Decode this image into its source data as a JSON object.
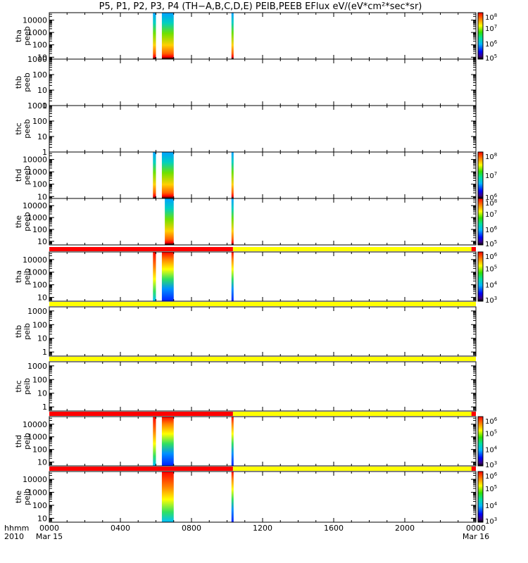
{
  "title": "P5, P1, P2, P3, P4 (TH−A,B,C,D,E) PEIB,PEEB EFlux eV/(eV*cm²*sec*sr)",
  "colors": {
    "red": "#ff0000",
    "yellow": "#ffff00",
    "background": "#ffffff"
  },
  "chart_data": [
    {
      "type": "heatmap",
      "probe": "tha",
      "product": "peeb",
      "ylabel": "tha\npeeb",
      "yscale": "log",
      "ylim": [
        7,
        40000
      ],
      "yticks": [
        "10000",
        "1000",
        "100",
        "10"
      ],
      "colorbar": {
        "min": 100000,
        "max": 100000000,
        "ticks": [
          "10^8",
          "10^7",
          "10^6",
          "10^5"
        ]
      },
      "data_intervals_hhmm": [
        [
          "0550",
          "0600"
        ],
        [
          "0620",
          "0700"
        ],
        [
          "1015",
          "1020"
        ]
      ]
    },
    {
      "type": "heatmap",
      "probe": "thb",
      "product": "peeb",
      "ylabel": "thb\npeeb",
      "yscale": "log",
      "ylim": [
        1,
        1000
      ],
      "yticks": [
        "1000",
        "100",
        "10",
        "1"
      ],
      "colorbar": null,
      "data_intervals_hhmm": []
    },
    {
      "type": "heatmap",
      "probe": "thc",
      "product": "peeb",
      "ylabel": "thc\npeeb",
      "yscale": "log",
      "ylim": [
        1,
        1000
      ],
      "yticks": [
        "1000",
        "100",
        "10",
        "1"
      ],
      "colorbar": null,
      "data_intervals_hhmm": []
    },
    {
      "type": "heatmap",
      "probe": "thd",
      "product": "peeb",
      "ylabel": "thd\npeeb",
      "yscale": "log",
      "ylim": [
        7,
        40000
      ],
      "yticks": [
        "10000",
        "1000",
        "100",
        "10"
      ],
      "colorbar": {
        "min": 1000000,
        "max": 100000000,
        "ticks": [
          "10^8",
          "10^7",
          "10^6"
        ]
      },
      "data_intervals_hhmm": [
        [
          "0550",
          "0600"
        ],
        [
          "0620",
          "0700"
        ],
        [
          "1015",
          "1020"
        ]
      ]
    },
    {
      "type": "heatmap",
      "probe": "the",
      "product": "peeb",
      "ylabel": "the\npeeb",
      "yscale": "log",
      "ylim": [
        5,
        40000
      ],
      "yticks": [
        "10000",
        "1000",
        "100",
        "10"
      ],
      "colorbar": {
        "min": 100000,
        "max": 100000000,
        "ticks": [
          "10^8",
          "10^7",
          "10^6",
          "10^5"
        ]
      },
      "data_intervals_hhmm": [
        [
          "0630",
          "0700"
        ],
        [
          "1015",
          "1020"
        ]
      ]
    },
    {
      "type": "heatmap",
      "probe": "tha",
      "product": "peib",
      "ylabel": "tha\npeib",
      "yscale": "log",
      "ylim": [
        5,
        40000
      ],
      "yticks": [
        "10000",
        "1000",
        "100",
        "10"
      ],
      "colorbar": {
        "min": 1000,
        "max": 1000000,
        "ticks": [
          "10^6",
          "10^5",
          "10^4",
          "10^3"
        ]
      },
      "mode_bar": [
        {
          "from": "0000",
          "to": "1020",
          "color": "red"
        },
        {
          "from": "1020",
          "to": "2345",
          "color": "yellow"
        },
        {
          "from": "2345",
          "to": "2400",
          "color": "red"
        }
      ],
      "data_intervals_hhmm": [
        [
          "0550",
          "0600"
        ],
        [
          "0620",
          "0700"
        ],
        [
          "1015",
          "1020"
        ]
      ]
    },
    {
      "type": "heatmap",
      "probe": "thb",
      "product": "peib",
      "ylabel": "thb\npeib",
      "yscale": "log",
      "ylim": [
        0.5,
        2000
      ],
      "yticks": [
        "1000",
        "100",
        "10",
        "1"
      ],
      "colorbar": null,
      "mode_bar": [
        {
          "from": "0000",
          "to": "2400",
          "color": "yellow"
        }
      ],
      "data_intervals_hhmm": []
    },
    {
      "type": "heatmap",
      "probe": "thc",
      "product": "peib",
      "ylabel": "thc\npeib",
      "yscale": "log",
      "ylim": [
        0.5,
        2000
      ],
      "yticks": [
        "1000",
        "100",
        "10",
        "1"
      ],
      "colorbar": null,
      "mode_bar": [
        {
          "from": "0000",
          "to": "2400",
          "color": "yellow"
        }
      ],
      "data_intervals_hhmm": []
    },
    {
      "type": "heatmap",
      "probe": "thd",
      "product": "peib",
      "ylabel": "thd\npeib",
      "yscale": "log",
      "ylim": [
        5,
        40000
      ],
      "yticks": [
        "10000",
        "1000",
        "100",
        "10"
      ],
      "colorbar": {
        "min": 1000,
        "max": 1000000,
        "ticks": [
          "10^6",
          "10^5",
          "10^4",
          "10^3"
        ]
      },
      "mode_bar": [
        {
          "from": "0000",
          "to": "1020",
          "color": "red"
        },
        {
          "from": "1020",
          "to": "2345",
          "color": "yellow"
        },
        {
          "from": "2345",
          "to": "2400",
          "color": "red"
        }
      ],
      "data_intervals_hhmm": [
        [
          "0550",
          "0600"
        ],
        [
          "0620",
          "0700"
        ],
        [
          "1015",
          "1020"
        ]
      ]
    },
    {
      "type": "heatmap",
      "probe": "the",
      "product": "peib",
      "ylabel": "the\npeib",
      "yscale": "log",
      "ylim": [
        5,
        40000
      ],
      "yticks": [
        "10000",
        "1000",
        "100",
        "10"
      ],
      "colorbar": {
        "min": 1000,
        "max": 1000000,
        "ticks": [
          "10^6",
          "10^5",
          "10^4",
          "10^3"
        ]
      },
      "mode_bar": [
        {
          "from": "0000",
          "to": "1020",
          "color": "red"
        },
        {
          "from": "1020",
          "to": "2345",
          "color": "yellow"
        },
        {
          "from": "2345",
          "to": "2400",
          "color": "red"
        }
      ],
      "data_intervals_hhmm": [
        [
          "0620",
          "0700"
        ],
        [
          "1015",
          "1020"
        ]
      ]
    }
  ],
  "x_axis": {
    "label_top": "hhmm",
    "label_bottom": "2010",
    "xlim_hours": [
      0,
      24
    ],
    "ticks": [
      {
        "hours": 0,
        "label": "0000",
        "sub": "Mar 15"
      },
      {
        "hours": 4,
        "label": "0400",
        "sub": ""
      },
      {
        "hours": 8,
        "label": "0800",
        "sub": ""
      },
      {
        "hours": 12,
        "label": "1200",
        "sub": ""
      },
      {
        "hours": 16,
        "label": "1600",
        "sub": ""
      },
      {
        "hours": 20,
        "label": "2000",
        "sub": ""
      },
      {
        "hours": 24,
        "label": "0000",
        "sub": "Mar 16"
      }
    ]
  }
}
